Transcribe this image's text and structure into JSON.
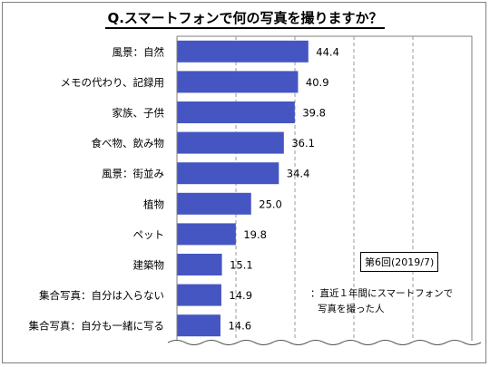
{
  "title": "Q.スマートフォンで何の写真を撮りますか？",
  "chart_data": {
    "type": "bar",
    "orientation": "horizontal",
    "categories": [
      "風景：自然",
      "メモの代わり、記録用",
      "家族、子供",
      "食べ物、飲み物",
      "風景：街並み",
      "植物",
      "ペット",
      "建築物",
      "集合写真：自分は入らない",
      "集合写真：自分も一緒に写る"
    ],
    "values": [
      44.4,
      40.9,
      39.8,
      36.1,
      34.4,
      25.0,
      19.8,
      15.1,
      14.9,
      14.6
    ],
    "value_labels": [
      "44.4",
      "40.9",
      "39.8",
      "36.1",
      "34.4",
      "25.0",
      "19.8",
      "15.1",
      "14.9",
      "14.6"
    ],
    "xlim": [
      0,
      100
    ],
    "grid": "vertical dashed",
    "bar_color": "#4556c2"
  },
  "survey_label": "第6回(2019/7)",
  "footnote": {
    "line1": "：直近１年間にスマートフォンで",
    "line2": "写真を撮った人"
  }
}
